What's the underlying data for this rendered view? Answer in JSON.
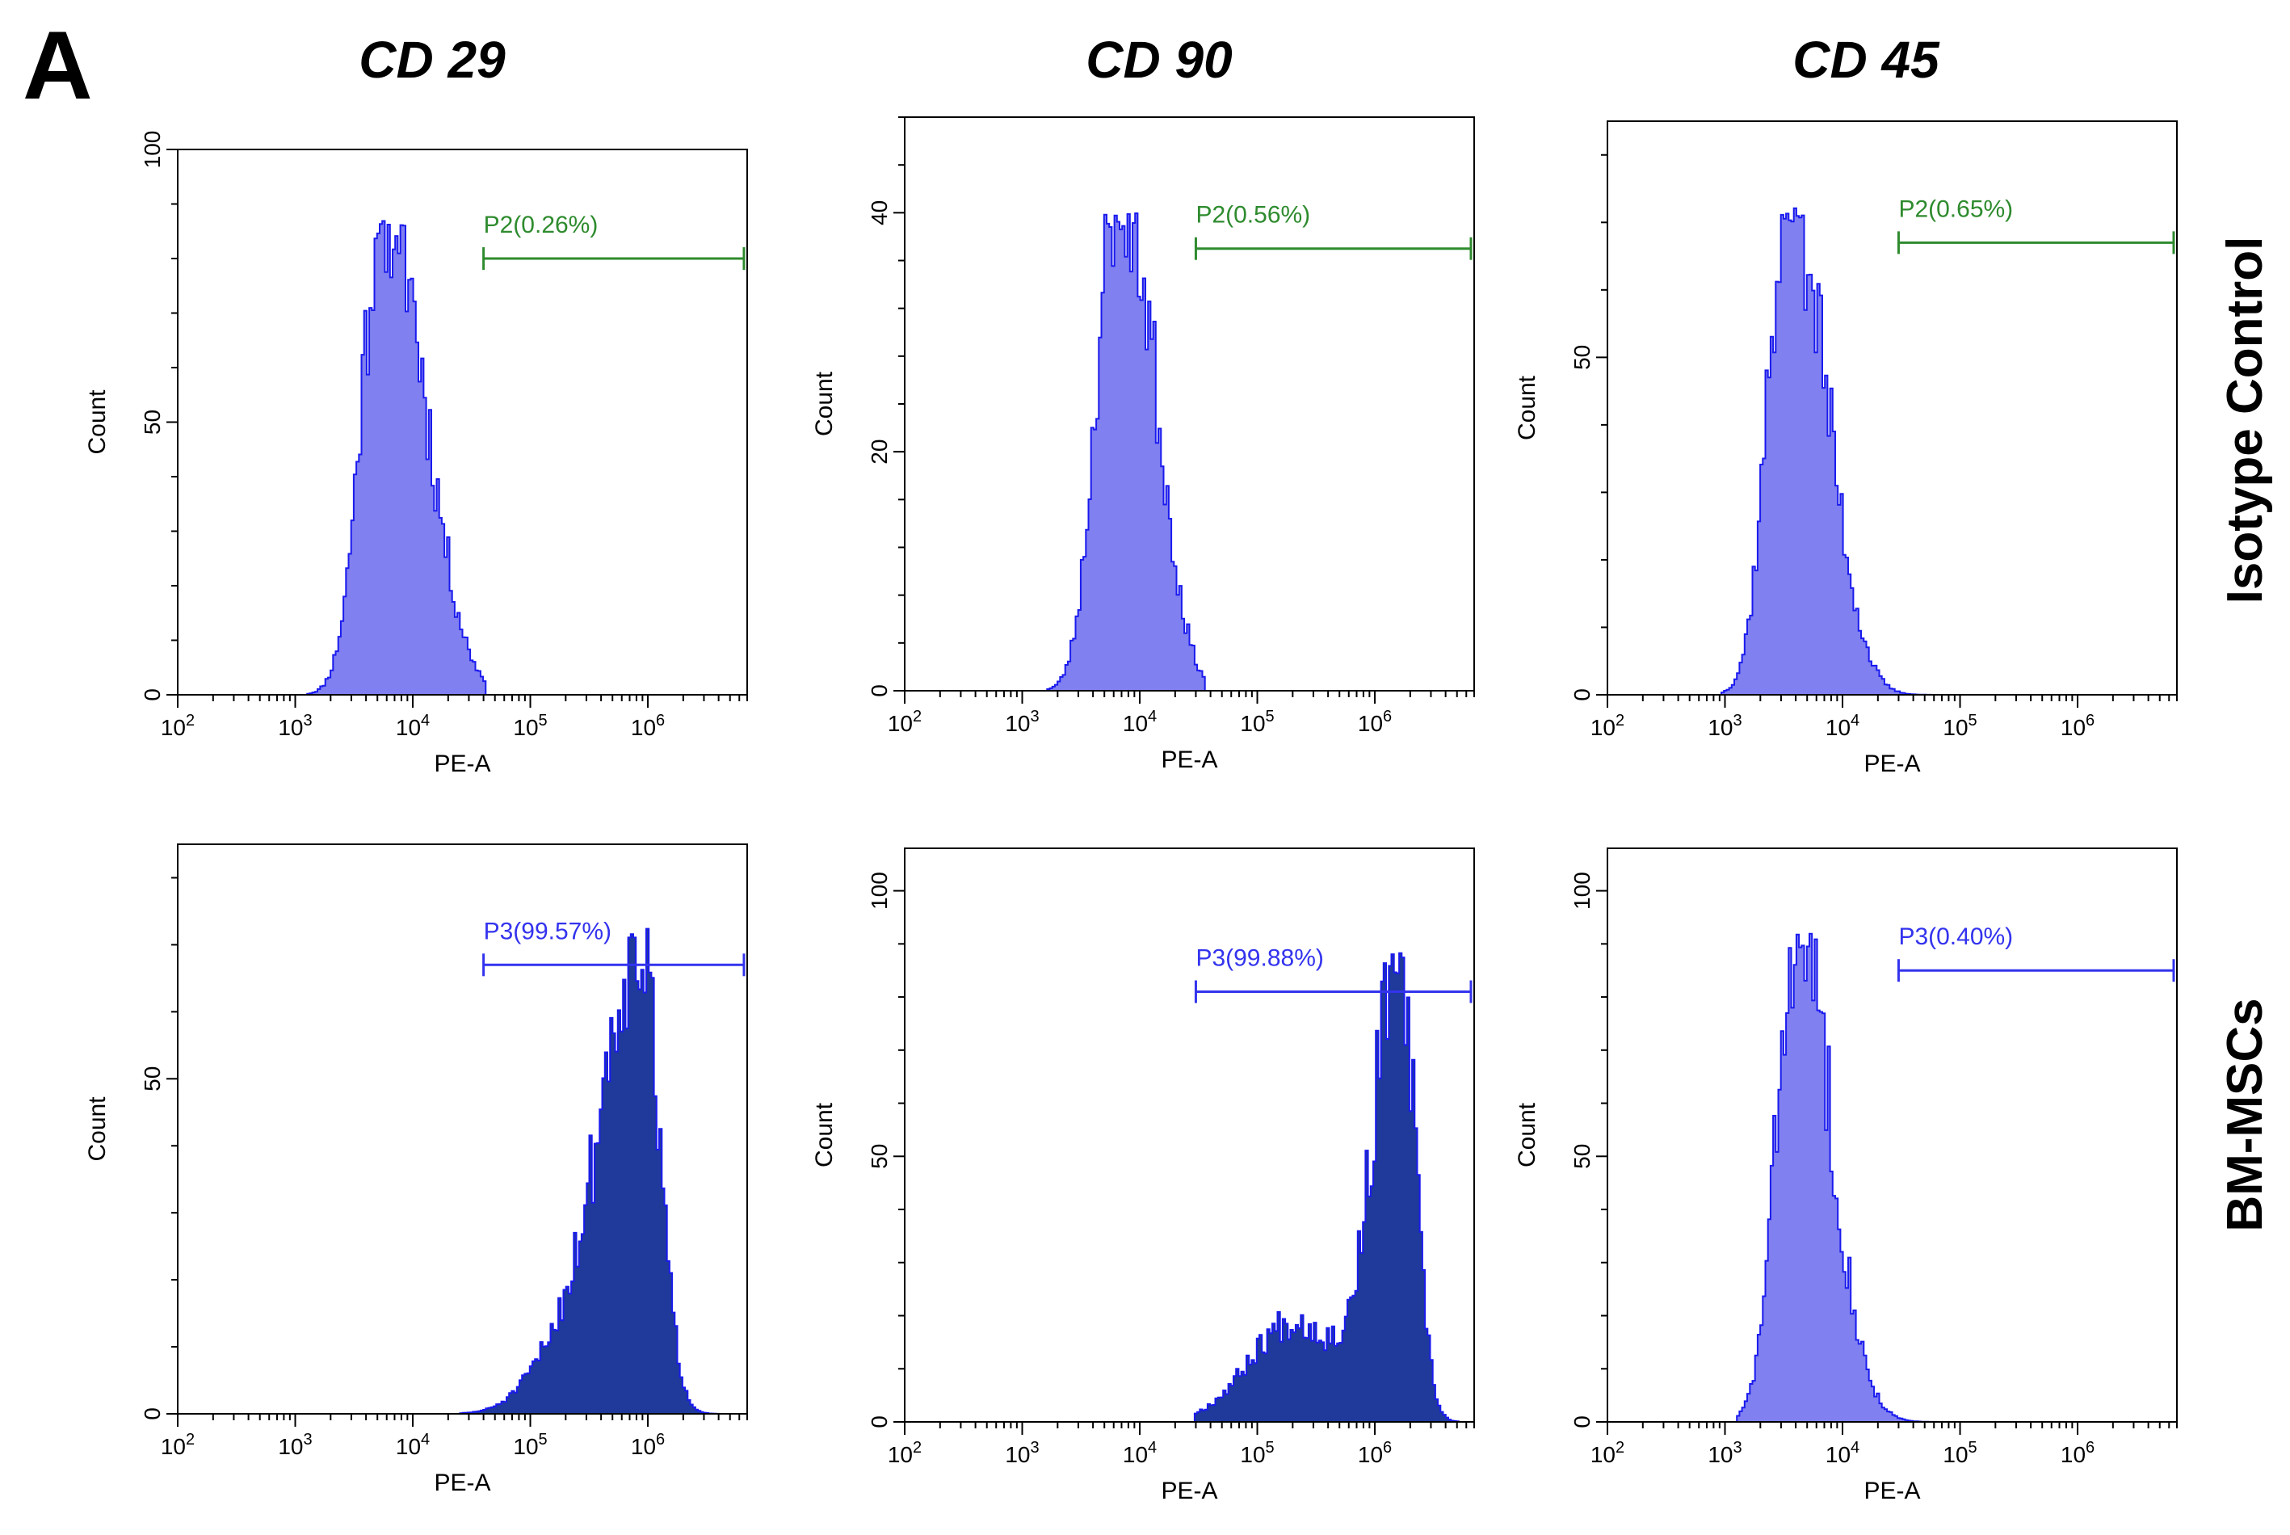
{
  "figure": {
    "panel_letter": "A",
    "columns": [
      "CD 29",
      "CD 90",
      "CD 45"
    ],
    "rows": [
      "Isotype Control",
      "BM-MSCs"
    ]
  },
  "colors": {
    "control_gate": "#2e8b2e",
    "positive_gate": "#3333ee",
    "fill_light": "#8080f0",
    "fill_dark": "#1f3a9a",
    "outline": "#1a1aee"
  },
  "chart_data": [
    {
      "type": "histogram",
      "id": "cd29-isotype",
      "marker": "CD 29",
      "sample": "Isotype Control",
      "xlabel": "PE-A",
      "ylabel": "Count",
      "xscale": "log",
      "xlim": [
        100,
        7000000
      ],
      "ylim": [
        0,
        100
      ],
      "yticks": [
        0,
        50,
        100
      ],
      "xticks": [
        {
          "e": 2,
          "label": "10",
          "sup": "2"
        },
        {
          "e": 3,
          "label": "10",
          "sup": "3"
        },
        {
          "e": 4,
          "label": "10",
          "sup": "4"
        },
        {
          "e": 5,
          "label": "10",
          "sup": "5"
        },
        {
          "e": 6,
          "label": "10",
          "sup": "6"
        }
      ],
      "gate": {
        "label": "P2(0.26%)",
        "x_start": 40000,
        "x_end": 7000000,
        "y": 80,
        "kind": "control"
      },
      "distribution": {
        "peak_log": 3.73,
        "peak_count": 87,
        "sigma_left": 0.18,
        "sigma_right": 0.28,
        "tail_height": 0.22,
        "tail_offset": 0.35,
        "tail_sigma": 0.25,
        "min_log": 3.1,
        "max_log": 4.6,
        "fill": "light",
        "seed": 11
      }
    },
    {
      "type": "histogram",
      "id": "cd90-isotype",
      "marker": "CD 90",
      "sample": "Isotype Control",
      "xlabel": "PE-A",
      "ylabel": "Count",
      "xscale": "log",
      "xlim": [
        100,
        7000000
      ],
      "ylim": [
        0,
        48
      ],
      "yticks": [
        0,
        20,
        40
      ],
      "xticks": [
        {
          "e": 2,
          "label": "10",
          "sup": "2"
        },
        {
          "e": 3,
          "label": "10",
          "sup": "3"
        },
        {
          "e": 4,
          "label": "10",
          "sup": "4"
        },
        {
          "e": 5,
          "label": "10",
          "sup": "5"
        },
        {
          "e": 6,
          "label": "10",
          "sup": "6"
        }
      ],
      "gate": {
        "label": "P2(0.56%)",
        "x_start": 30000,
        "x_end": 7000000,
        "y": 37,
        "kind": "control"
      },
      "distribution": {
        "peak_log": 3.78,
        "peak_count": 40,
        "sigma_left": 0.17,
        "sigma_right": 0.25,
        "tail_height": 0.28,
        "tail_offset": 0.3,
        "tail_sigma": 0.2,
        "min_log": 3.2,
        "max_log": 4.55,
        "fill": "light",
        "seed": 23
      }
    },
    {
      "type": "histogram",
      "id": "cd45-isotype",
      "marker": "CD 45",
      "sample": "Isotype Control",
      "xlabel": "PE-A",
      "ylabel": "Count",
      "xscale": "log",
      "xlim": [
        100,
        7000000
      ],
      "ylim": [
        0,
        85
      ],
      "yticks": [
        0,
        50
      ],
      "xticks": [
        {
          "e": 2,
          "label": "10",
          "sup": "2"
        },
        {
          "e": 3,
          "label": "10",
          "sup": "3"
        },
        {
          "e": 4,
          "label": "10",
          "sup": "4"
        },
        {
          "e": 5,
          "label": "10",
          "sup": "5"
        },
        {
          "e": 6,
          "label": "10",
          "sup": "6"
        }
      ],
      "gate": {
        "label": "P2(0.65%)",
        "x_start": 30000,
        "x_end": 7000000,
        "y": 67,
        "kind": "control"
      },
      "distribution": {
        "peak_log": 3.52,
        "peak_count": 73,
        "sigma_left": 0.17,
        "sigma_right": 0.25,
        "tail_height": 0.22,
        "tail_offset": 0.35,
        "tail_sigma": 0.22,
        "min_log": 2.95,
        "max_log": 4.75,
        "fill": "light",
        "seed": 37
      }
    },
    {
      "type": "histogram",
      "id": "cd29-bmmsc",
      "marker": "CD 29",
      "sample": "BM-MSCs",
      "xlabel": "PE-A",
      "ylabel": "Count",
      "xscale": "log",
      "xlim": [
        100,
        7000000
      ],
      "ylim": [
        0,
        85
      ],
      "yticks": [
        0,
        50
      ],
      "xticks": [
        {
          "e": 2,
          "label": "10",
          "sup": "2"
        },
        {
          "e": 3,
          "label": "10",
          "sup": "3"
        },
        {
          "e": 4,
          "label": "10",
          "sup": "4"
        },
        {
          "e": 5,
          "label": "10",
          "sup": "5"
        },
        {
          "e": 6,
          "label": "10",
          "sup": "6"
        }
      ],
      "gate": {
        "label": "P3(99.57%)",
        "x_start": 40000,
        "x_end": 7000000,
        "y": 67,
        "kind": "positive"
      },
      "distribution": {
        "peak_log": 5.92,
        "peak_count": 73,
        "sigma_left": 0.3,
        "sigma_right": 0.16,
        "tail_height": 0.15,
        "tail_offset": -0.6,
        "tail_sigma": 0.3,
        "min_log": 4.4,
        "max_log": 6.6,
        "fill": "dark",
        "seed": 51
      }
    },
    {
      "type": "histogram",
      "id": "cd90-bmmsc",
      "marker": "CD 90",
      "sample": "BM-MSCs",
      "xlabel": "PE-A",
      "ylabel": "Count",
      "xscale": "log",
      "xlim": [
        100,
        7000000
      ],
      "ylim": [
        0,
        108
      ],
      "yticks": [
        0,
        50,
        100
      ],
      "xticks": [
        {
          "e": 2,
          "label": "10",
          "sup": "2"
        },
        {
          "e": 3,
          "label": "10",
          "sup": "3"
        },
        {
          "e": 4,
          "label": "10",
          "sup": "4"
        },
        {
          "e": 5,
          "label": "10",
          "sup": "5"
        },
        {
          "e": 6,
          "label": "10",
          "sup": "6"
        }
      ],
      "gate": {
        "label": "P3(99.88%)",
        "x_start": 30000,
        "x_end": 7000000,
        "y": 81,
        "kind": "positive"
      },
      "distribution": {
        "peak_log": 6.2,
        "peak_count": 89,
        "sigma_left": 0.22,
        "sigma_right": 0.13,
        "tail_height": 0.22,
        "tail_offset": -0.9,
        "tail_sigma": 0.38,
        "min_log": 4.45,
        "max_log": 6.7,
        "fill": "dark",
        "seed": 67
      }
    },
    {
      "type": "histogram",
      "id": "cd45-bmmsc",
      "marker": "CD 45",
      "sample": "BM-MSCs",
      "xlabel": "PE-A",
      "ylabel": "Count",
      "xscale": "log",
      "xlim": [
        100,
        7000000
      ],
      "ylim": [
        0,
        108
      ],
      "yticks": [
        0,
        50,
        100
      ],
      "xticks": [
        {
          "e": 2,
          "label": "10",
          "sup": "2"
        },
        {
          "e": 3,
          "label": "10",
          "sup": "3"
        },
        {
          "e": 4,
          "label": "10",
          "sup": "4"
        },
        {
          "e": 5,
          "label": "10",
          "sup": "5"
        },
        {
          "e": 6,
          "label": "10",
          "sup": "6"
        }
      ],
      "gate": {
        "label": "P3(0.40%)",
        "x_start": 30000,
        "x_end": 7000000,
        "y": 85,
        "kind": "positive"
      },
      "distribution": {
        "peak_log": 3.6,
        "peak_count": 92,
        "sigma_left": 0.17,
        "sigma_right": 0.22,
        "tail_height": 0.22,
        "tail_offset": 0.3,
        "tail_sigma": 0.22,
        "min_log": 3.1,
        "max_log": 4.8,
        "fill": "light",
        "seed": 83
      }
    }
  ]
}
